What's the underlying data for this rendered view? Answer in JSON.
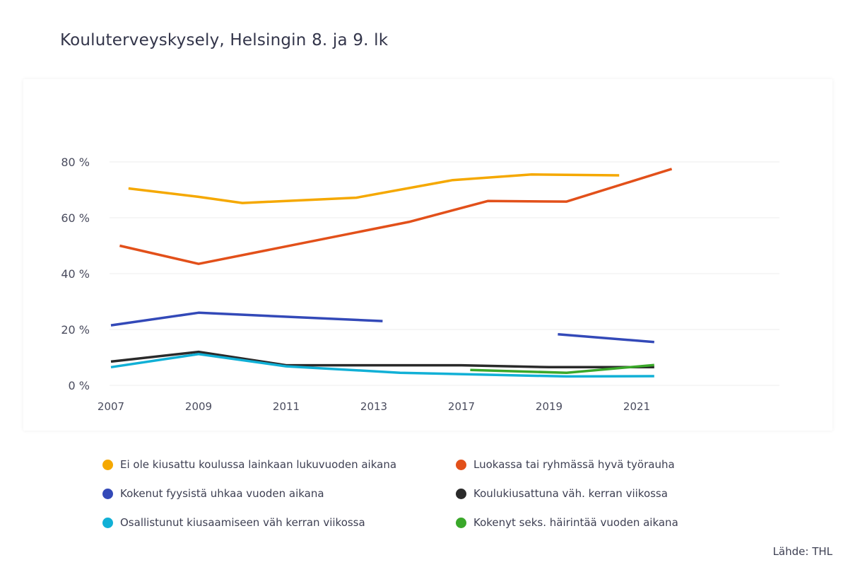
{
  "title": "Kouluterveyskysely, Helsingin 8. ja 9. lk",
  "source": "Lähde: THL",
  "chart_data": {
    "type": "line",
    "ylim": [
      0,
      80
    ],
    "y_ticks": [
      "0 %",
      "20 %",
      "40 %",
      "60 %",
      "80 %"
    ],
    "y_tick_values": [
      0,
      20,
      40,
      60,
      80
    ],
    "x_ticks": [
      "2007",
      "2009",
      "2011",
      "2013",
      "2017",
      "2019",
      "2021"
    ],
    "grid": true,
    "legend_position": "bottom",
    "series": [
      {
        "name": "Ei ole kiusattu koulussa lainkaan lukuvuoden aikana",
        "color": "#f5a800",
        "points": [
          [
            0.2,
            70.5
          ],
          [
            1.0,
            67.5
          ],
          [
            1.5,
            65.3
          ],
          [
            2.8,
            67.2
          ],
          [
            3.9,
            73.5
          ],
          [
            4.8,
            75.5
          ],
          [
            5.8,
            75.2
          ]
        ]
      },
      {
        "name": "Luokassa tai ryhmässä hyvä työrauha",
        "color": "#e2501a",
        "points": [
          [
            0.1,
            50.0
          ],
          [
            1.0,
            43.5
          ],
          [
            3.4,
            58.5
          ],
          [
            4.3,
            66.0
          ],
          [
            5.2,
            65.8
          ],
          [
            6.4,
            77.5
          ]
        ]
      },
      {
        "name": "Kokenut fyysistä uhkaa vuoden aikana",
        "color": "#3349b8",
        "segments": [
          [
            [
              0.0,
              21.5
            ],
            [
              1.0,
              26.0
            ],
            [
              3.1,
              23.0
            ]
          ],
          [
            [
              5.1,
              18.3
            ],
            [
              6.2,
              15.5
            ]
          ]
        ]
      },
      {
        "name": "Koulukiusattuna väh. kerran viikossa",
        "color": "#2a2a2a",
        "points": [
          [
            0.0,
            8.5
          ],
          [
            1.0,
            12.0
          ],
          [
            2.0,
            7.2
          ],
          [
            3.0,
            7.2
          ],
          [
            4.0,
            7.2
          ],
          [
            5.0,
            6.5
          ],
          [
            6.2,
            6.5
          ]
        ]
      },
      {
        "name": "Osallistunut kiusaamiseen väh kerran viikossa",
        "color": "#11b0d6",
        "points": [
          [
            0.0,
            6.5
          ],
          [
            1.0,
            11.2
          ],
          [
            2.0,
            6.8
          ],
          [
            3.3,
            4.5
          ],
          [
            4.3,
            3.8
          ],
          [
            5.2,
            3.2
          ],
          [
            6.2,
            3.3
          ]
        ]
      },
      {
        "name": "Kokenyt seks. häirintää vuoden aikana",
        "color": "#3aa82a",
        "points": [
          [
            4.1,
            5.5
          ],
          [
            5.2,
            4.5
          ],
          [
            6.2,
            7.3
          ]
        ]
      }
    ]
  }
}
